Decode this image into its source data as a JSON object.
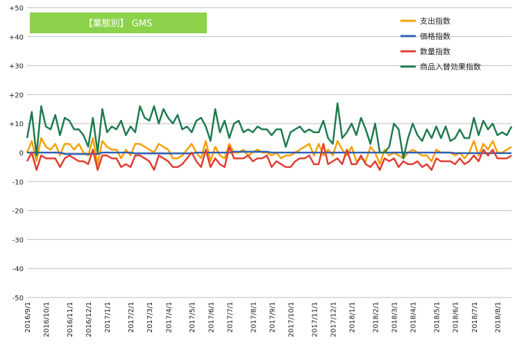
{
  "chart_data": {
    "type": "line",
    "title": "【業態別】 GMS",
    "title_box_color": "#8cd24b",
    "xlabel": "",
    "ylabel": "",
    "ylim": [
      -50,
      50
    ],
    "yticks": [
      "+50",
      "+40",
      "+30",
      "+20",
      "+10",
      "0",
      "-10",
      "-20",
      "-30",
      "-40",
      "-50"
    ],
    "grid": true,
    "legend_position": "top-right",
    "x_tick_labels": [
      "2016/9/1",
      "2016/10/1",
      "2016/11/1",
      "2016/12/1",
      "2017/1/1",
      "2017/2/1",
      "2017/3/1",
      "2017/4/1",
      "2017/5/1",
      "2017/6/1",
      "2017/7/1",
      "2017/8/1",
      "2017/9/1",
      "2017/10/1",
      "2017/11/1",
      "2017/12/1",
      "2018/1/1",
      "2018/2/1",
      "2018/3/1",
      "2018/4/1",
      "2018/5/1",
      "2018/6/1",
      "2018/7/1",
      "2018/8/1"
    ],
    "x_tick_week_index": [
      0,
      4,
      9,
      13,
      17,
      22,
      26,
      30,
      35,
      39,
      43,
      48,
      52,
      56,
      61,
      65,
      69,
      74,
      78,
      82,
      87,
      91,
      95,
      100
    ],
    "series": [
      {
        "name": "支出指数",
        "color": "#f5a000",
        "values": [
          0,
          4,
          -3,
          5,
          2,
          1,
          3,
          -1,
          3,
          3,
          1,
          3,
          0,
          -1,
          5,
          -4,
          4,
          2,
          1,
          1,
          -2,
          1,
          -1,
          3,
          3,
          2,
          1,
          0,
          3,
          2,
          1,
          -2,
          -2,
          -1,
          1,
          3,
          0,
          -2,
          4,
          -3,
          2,
          -1,
          -2,
          3,
          0,
          0,
          1,
          -1,
          0,
          1,
          0,
          0,
          -1,
          0,
          -2,
          -1,
          -1,
          0,
          1,
          2,
          3,
          -1,
          3,
          -1,
          1,
          -1,
          4,
          1,
          -1,
          2,
          -3,
          -2,
          -3,
          2,
          0,
          -4,
          1,
          -1,
          0,
          -1,
          -2,
          0,
          1,
          0,
          -1,
          -1,
          -3,
          1,
          0,
          0,
          0,
          -1,
          0,
          -2,
          0,
          4,
          -1,
          3,
          1,
          4,
          0,
          0,
          1,
          2
        ],
        "labels_visible": false
      },
      {
        "name": "価格指数",
        "color": "#2f5fb3",
        "values": [
          0,
          0,
          0,
          0,
          0,
          0,
          0,
          0,
          -0.5,
          -0.5,
          -0.5,
          -0.5,
          -0.5,
          -0.5,
          -0.5,
          -0.5,
          0,
          0,
          0,
          0,
          0,
          0,
          0,
          -0.3,
          -0.3,
          -0.3,
          -0.3,
          -0.3,
          -0.3,
          -0.3,
          -0.3,
          -0.3,
          -0.3,
          -0.3,
          -0.3,
          -0.3,
          0,
          0,
          0,
          0,
          0,
          0,
          0,
          0,
          0.3,
          0.3,
          0.3,
          0.3,
          0.3,
          0.3,
          0.3,
          0.3,
          0,
          0,
          0,
          0,
          0,
          0,
          0,
          0,
          0,
          0,
          0,
          0,
          0,
          0,
          0,
          0,
          0,
          0,
          0,
          0,
          0,
          0,
          0,
          0,
          0,
          0,
          0,
          0,
          0,
          0,
          0,
          0,
          0,
          0,
          0,
          0,
          0,
          0,
          0,
          -0.2,
          -0.2,
          -0.2,
          -0.2,
          -0.2,
          -0.2,
          -0.2,
          -0.2,
          -0.2,
          -0.2,
          -0.2,
          -0.2,
          -0.2
        ]
      },
      {
        "name": "数量指数",
        "color": "#e03c31",
        "values": [
          -3,
          0,
          -6,
          -1,
          -2,
          -2,
          -2,
          -5,
          -2,
          -1,
          -2,
          -3,
          -3,
          -4,
          1,
          -6,
          -1,
          -1,
          -2,
          -2,
          -5,
          -4,
          -5,
          -1,
          -1,
          -2,
          -3,
          -6,
          -1,
          -2,
          -3,
          -5,
          -5,
          -4,
          -2,
          0,
          -3,
          -5,
          1,
          -5,
          -2,
          -4,
          -5,
          2,
          -2,
          -2,
          -2,
          -1,
          -3,
          -2,
          -2,
          -1,
          -5,
          -3,
          -4,
          -5,
          -5,
          -3,
          -2,
          -2,
          -1,
          -4,
          -4,
          3,
          -4,
          -3,
          -2,
          -4,
          1,
          -4,
          -4,
          -1,
          -4,
          -5,
          -3,
          -6,
          -2,
          -3,
          -2,
          -5,
          -3,
          -4,
          -4,
          -3,
          -5,
          -4,
          -6,
          -2,
          -3,
          -3,
          -3,
          -4,
          -2,
          -4,
          -3,
          -1,
          -3,
          1,
          -1,
          1,
          -2,
          -2,
          -2,
          -1
        ],
        "labels_visible": false
      },
      {
        "name": "商品入替効果指数",
        "color": "#1e7a4e",
        "values": [
          5,
          14,
          -1,
          16,
          9,
          8,
          13,
          6,
          12,
          11,
          8,
          8,
          6,
          2,
          12,
          0,
          15,
          7,
          9,
          8,
          11,
          6,
          9,
          7,
          16,
          12,
          11,
          16,
          10,
          15,
          12,
          10,
          13,
          8,
          9,
          7,
          11,
          12,
          9,
          4,
          15,
          7,
          11,
          5,
          10,
          11,
          7,
          8,
          7,
          9,
          8,
          8,
          6,
          8,
          8,
          2,
          7,
          8,
          9,
          7,
          8,
          7,
          7,
          11,
          5,
          3,
          17,
          5,
          7,
          10,
          6,
          12,
          8,
          3,
          10,
          0,
          0,
          2,
          10,
          8,
          -2,
          5,
          10,
          6,
          4,
          8,
          5,
          9,
          5,
          9,
          4,
          5,
          8,
          5,
          5,
          12,
          6,
          11,
          8,
          10,
          6,
          7,
          6,
          9
        ]
      }
    ]
  }
}
